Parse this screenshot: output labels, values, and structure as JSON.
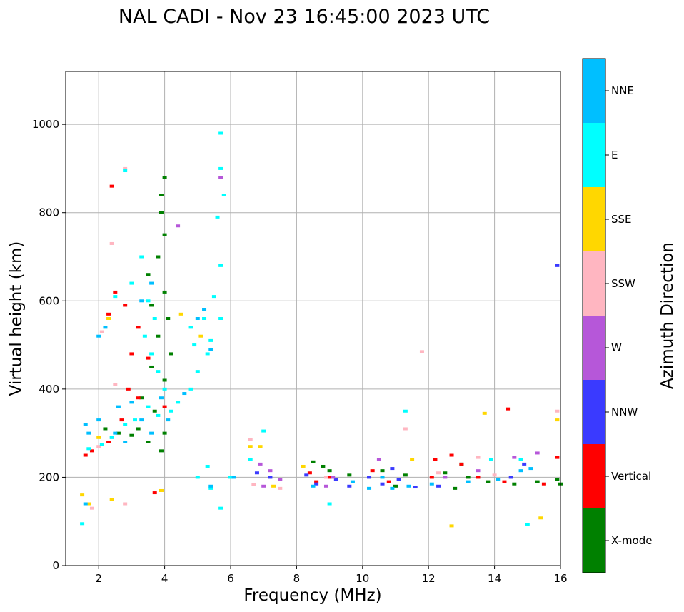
{
  "chart_data": {
    "type": "scatter",
    "title": "NAL CADI - Nov 23 16:45:00 2023 UTC",
    "xlabel": "Frequency (MHz)",
    "ylabel": "Virtual height (km)",
    "xlim": [
      1,
      16
    ],
    "ylim": [
      0,
      1120
    ],
    "xticks": [
      2,
      4,
      6,
      8,
      10,
      12,
      14,
      16
    ],
    "yticks": [
      0,
      200,
      400,
      600,
      800,
      1000
    ],
    "grid": true,
    "colorbar": {
      "label": "Azimuth Direction",
      "entries": [
        {
          "name": "X-mode",
          "color": "#008000"
        },
        {
          "name": "Vertical",
          "color": "#ff0000"
        },
        {
          "name": "NNW",
          "color": "#3a3aff"
        },
        {
          "name": "W",
          "color": "#b657d9"
        },
        {
          "name": "SSW",
          "color": "#ffb6c1"
        },
        {
          "name": "SSE",
          "color": "#ffd700"
        },
        {
          "name": "E",
          "color": "#00ffff"
        },
        {
          "name": "NNE",
          "color": "#00bfff"
        }
      ]
    },
    "series": [
      {
        "name": "X-mode",
        "points": [
          [
            4,
            880
          ],
          [
            3.9,
            840
          ],
          [
            3.9,
            800
          ],
          [
            4.0,
            750
          ],
          [
            3.8,
            700
          ],
          [
            3.5,
            660
          ],
          [
            4.0,
            620
          ],
          [
            3.6,
            590
          ],
          [
            4.1,
            560
          ],
          [
            3.8,
            520
          ],
          [
            4.2,
            480
          ],
          [
            3.6,
            450
          ],
          [
            4.0,
            420
          ],
          [
            3.3,
            380
          ],
          [
            3.7,
            350
          ],
          [
            3.2,
            310
          ],
          [
            3.5,
            280
          ],
          [
            3.0,
            295
          ],
          [
            2.6,
            300
          ],
          [
            2.2,
            310
          ],
          [
            4.0,
            300
          ],
          [
            3.9,
            260
          ],
          [
            8.5,
            235
          ],
          [
            8.8,
            225
          ],
          [
            9.0,
            215
          ],
          [
            10.6,
            215
          ],
          [
            11.3,
            205
          ],
          [
            12.5,
            210
          ],
          [
            13.2,
            200
          ],
          [
            13.8,
            190
          ],
          [
            14.6,
            185
          ],
          [
            15.3,
            190
          ],
          [
            15.9,
            195
          ],
          [
            12.8,
            175
          ],
          [
            11.0,
            180
          ],
          [
            9.6,
            205
          ],
          [
            16.0,
            185
          ],
          [
            13.0,
            230
          ]
        ]
      },
      {
        "name": "Vertical",
        "points": [
          [
            2.4,
            860
          ],
          [
            2.5,
            620
          ],
          [
            2.3,
            570
          ],
          [
            2.8,
            590
          ],
          [
            3.2,
            540
          ],
          [
            3.0,
            480
          ],
          [
            3.5,
            470
          ],
          [
            2.9,
            400
          ],
          [
            3.2,
            380
          ],
          [
            2.7,
            330
          ],
          [
            2.3,
            280
          ],
          [
            1.8,
            260
          ],
          [
            1.6,
            250
          ],
          [
            3.7,
            165
          ],
          [
            4.0,
            360
          ],
          [
            9.0,
            200
          ],
          [
            8.4,
            210
          ],
          [
            10.3,
            215
          ],
          [
            12.2,
            240
          ],
          [
            12.7,
            250
          ],
          [
            13.0,
            230
          ],
          [
            14.4,
            355
          ],
          [
            15.9,
            245
          ],
          [
            12.1,
            200
          ],
          [
            14.3,
            190
          ],
          [
            15.5,
            185
          ],
          [
            13.5,
            200
          ],
          [
            10.8,
            190
          ],
          [
            8.6,
            190
          ]
        ]
      },
      {
        "name": "NNW",
        "points": [
          [
            8.3,
            205
          ],
          [
            8.6,
            185
          ],
          [
            9.2,
            195
          ],
          [
            9.6,
            180
          ],
          [
            10.2,
            200
          ],
          [
            10.6,
            185
          ],
          [
            11.1,
            195
          ],
          [
            11.6,
            178
          ],
          [
            6.8,
            210
          ],
          [
            7.2,
            200
          ],
          [
            15.9,
            680
          ],
          [
            14.5,
            200
          ],
          [
            14.9,
            230
          ],
          [
            12.3,
            180
          ],
          [
            10.9,
            220
          ]
        ]
      },
      {
        "name": "W",
        "points": [
          [
            6.9,
            230
          ],
          [
            7.2,
            215
          ],
          [
            7.5,
            195
          ],
          [
            8.9,
            180
          ],
          [
            9.1,
            200
          ],
          [
            10.5,
            240
          ],
          [
            12.5,
            200
          ],
          [
            13.5,
            215
          ],
          [
            14.6,
            245
          ],
          [
            15.3,
            255
          ],
          [
            5.7,
            880
          ],
          [
            4.4,
            770
          ],
          [
            7.0,
            180
          ]
        ]
      },
      {
        "name": "SSW",
        "points": [
          [
            2.8,
            900
          ],
          [
            2.4,
            730
          ],
          [
            2.1,
            530
          ],
          [
            2.5,
            410
          ],
          [
            2.4,
            290
          ],
          [
            2.0,
            270
          ],
          [
            1.8,
            130
          ],
          [
            2.8,
            140
          ],
          [
            6.6,
            285
          ],
          [
            7.5,
            175
          ],
          [
            11.8,
            485
          ],
          [
            15.9,
            350
          ],
          [
            14.0,
            205
          ],
          [
            13.5,
            245
          ],
          [
            12.3,
            210
          ],
          [
            11.3,
            310
          ],
          [
            6.7,
            183
          ],
          [
            8.9,
            200
          ]
        ]
      },
      {
        "name": "SSE",
        "points": [
          [
            1.5,
            160
          ],
          [
            1.7,
            140
          ],
          [
            2.4,
            150
          ],
          [
            2.3,
            560
          ],
          [
            2.0,
            290
          ],
          [
            3.9,
            170
          ],
          [
            6.6,
            270
          ],
          [
            6.9,
            270
          ],
          [
            7.3,
            180
          ],
          [
            8.2,
            225
          ],
          [
            13.7,
            345
          ],
          [
            15.9,
            330
          ],
          [
            15.4,
            108
          ],
          [
            12.7,
            90
          ],
          [
            11.5,
            240
          ],
          [
            5.1,
            520
          ],
          [
            4.5,
            570
          ]
        ]
      },
      {
        "name": "E",
        "points": [
          [
            2.8,
            895
          ],
          [
            2.5,
            610
          ],
          [
            3.0,
            640
          ],
          [
            3.3,
            700
          ],
          [
            3.5,
            600
          ],
          [
            3.7,
            560
          ],
          [
            3.4,
            520
          ],
          [
            3.6,
            480
          ],
          [
            3.8,
            440
          ],
          [
            4.0,
            400
          ],
          [
            3.5,
            360
          ],
          [
            3.8,
            340
          ],
          [
            4.2,
            350
          ],
          [
            3.1,
            330
          ],
          [
            2.8,
            320
          ],
          [
            2.4,
            290
          ],
          [
            2.1,
            275
          ],
          [
            1.7,
            265
          ],
          [
            4.4,
            370
          ],
          [
            4.8,
            400
          ],
          [
            5.0,
            440
          ],
          [
            5.3,
            480
          ],
          [
            5.4,
            510
          ],
          [
            5.2,
            560
          ],
          [
            4.9,
            500
          ],
          [
            5.7,
            980
          ],
          [
            5.7,
            900
          ],
          [
            5.8,
            840
          ],
          [
            5.6,
            790
          ],
          [
            5.7,
            680
          ],
          [
            5.7,
            560
          ],
          [
            5.5,
            610
          ],
          [
            5.0,
            200
          ],
          [
            5.3,
            225
          ],
          [
            5.4,
            175
          ],
          [
            5.7,
            130
          ],
          [
            6.0,
            200
          ],
          [
            6.6,
            240
          ],
          [
            7.0,
            305
          ],
          [
            9.0,
            140
          ],
          [
            11.3,
            350
          ],
          [
            15.0,
            93
          ],
          [
            14.8,
            240
          ],
          [
            13.9,
            240
          ],
          [
            1.5,
            95
          ],
          [
            4.8,
            540
          ]
        ]
      },
      {
        "name": "NNE",
        "points": [
          [
            1.6,
            320
          ],
          [
            2.0,
            330
          ],
          [
            2.6,
            360
          ],
          [
            3.0,
            370
          ],
          [
            3.3,
            330
          ],
          [
            2.5,
            300
          ],
          [
            1.7,
            300
          ],
          [
            2.8,
            280
          ],
          [
            3.6,
            300
          ],
          [
            4.1,
            330
          ],
          [
            3.9,
            380
          ],
          [
            5.0,
            560
          ],
          [
            5.2,
            580
          ],
          [
            5.4,
            490
          ],
          [
            4.6,
            390
          ],
          [
            1.6,
            140
          ],
          [
            2.0,
            520
          ],
          [
            2.2,
            540
          ],
          [
            5.4,
            180
          ],
          [
            6.1,
            200
          ],
          [
            8.5,
            180
          ],
          [
            9.7,
            190
          ],
          [
            10.2,
            175
          ],
          [
            10.9,
            175
          ],
          [
            11.4,
            180
          ],
          [
            12.1,
            185
          ],
          [
            13.2,
            190
          ],
          [
            14.1,
            195
          ],
          [
            14.8,
            215
          ],
          [
            15.1,
            220
          ],
          [
            10.6,
            200
          ],
          [
            3.6,
            640
          ],
          [
            3.3,
            600
          ]
        ]
      }
    ]
  }
}
